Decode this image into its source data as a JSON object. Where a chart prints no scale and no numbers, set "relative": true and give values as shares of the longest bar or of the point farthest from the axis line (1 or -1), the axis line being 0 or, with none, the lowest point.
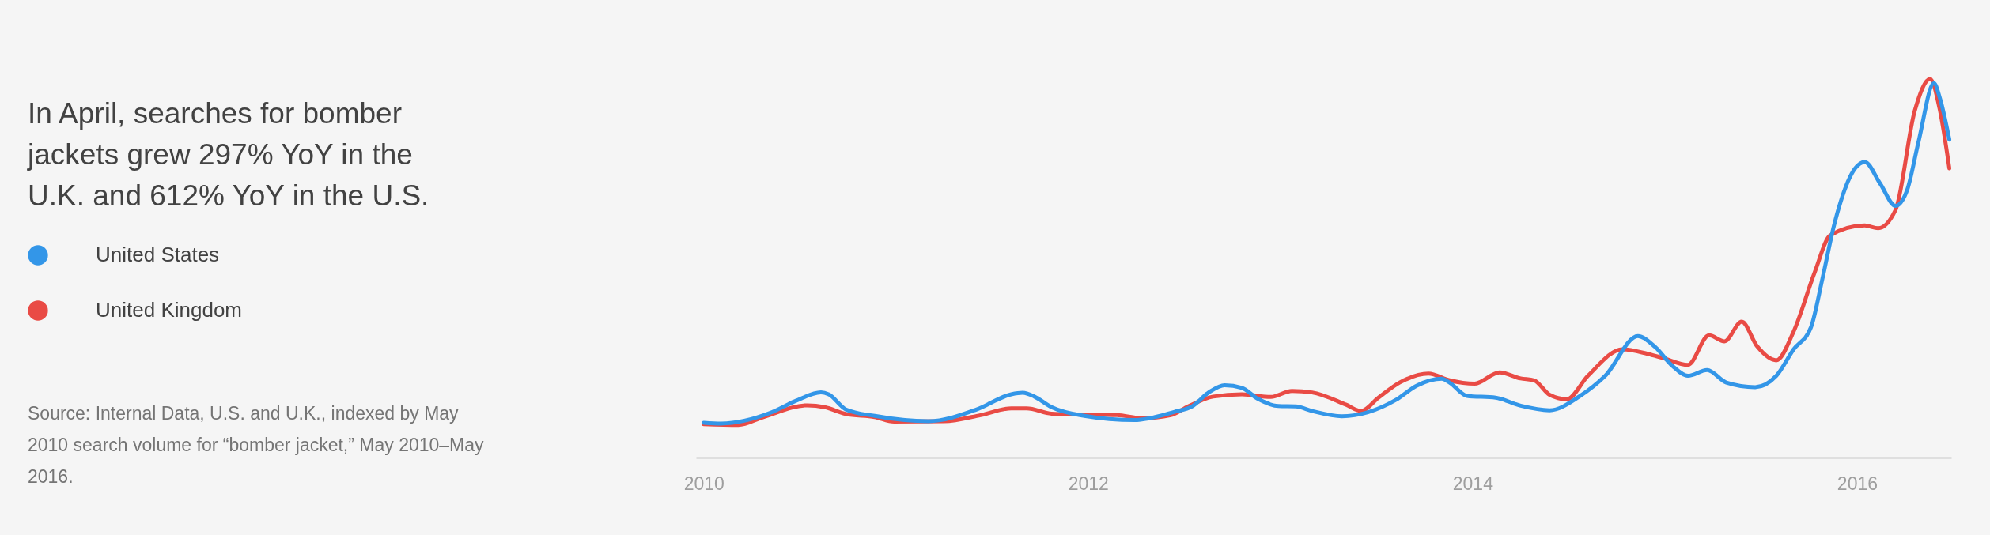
{
  "chart_data": {
    "type": "line",
    "title": "In April, searches for bomber jackets grew 297% YoY in the U.K. and 612% YoY in the U.S.",
    "annotations": [
      "Source: Internal Data, U.S. and U.K., indexed by May 2010 search volume for “bomber jacket,” May 2010–May 2016."
    ],
    "relative": true,
    "legend": "left",
    "xlim": [
      2009.96,
      2016.49
    ],
    "xticks": [
      2010,
      2012,
      2014,
      2016
    ],
    "grid": false,
    "series": [
      {
        "name": "United States",
        "color": "#3396e8",
        "x": [
          2010.0,
          2010.09,
          2010.35,
          2010.48,
          2010.61,
          2010.65,
          2010.74,
          2010.89,
          2011.17,
          2011.42,
          2011.6,
          2011.66,
          2011.72,
          2011.81,
          2011.98,
          2012.24,
          2012.45,
          2012.54,
          2012.63,
          2012.71,
          2012.8,
          2012.88,
          2012.99,
          2013.08,
          2013.165,
          2013.32,
          2013.6,
          2013.71,
          2013.84,
          2013.88,
          2013.97,
          2014.12,
          2014.25,
          2014.4,
          2014.56,
          2014.69,
          2014.86,
          2014.95,
          2015.04,
          2015.12,
          2015.22,
          2015.32,
          2015.47,
          2015.58,
          2015.67,
          2015.76,
          2015.82,
          2015.88,
          2015.99,
          2016.04,
          2016.12,
          2016.2,
          2016.26,
          2016.32,
          2016.4,
          2016.43,
          2016.48
        ],
        "values": [
          0.092,
          0.09,
          0.119,
          0.15,
          0.172,
          0.167,
          0.127,
          0.11,
          0.096,
          0.127,
          0.167,
          0.171,
          0.161,
          0.133,
          0.11,
          0.099,
          0.121,
          0.135,
          0.173,
          0.191,
          0.184,
          0.156,
          0.136,
          0.135,
          0.123,
          0.109,
          0.152,
          0.19,
          0.208,
          0.198,
          0.163,
          0.158,
          0.137,
          0.125,
          0.163,
          0.216,
          0.321,
          0.292,
          0.242,
          0.216,
          0.231,
          0.198,
          0.186,
          0.216,
          0.286,
          0.344,
          0.473,
          0.613,
          0.764,
          0.781,
          0.724,
          0.665,
          0.706,
          0.835,
          0.989,
          0.951,
          0.84
        ]
      },
      {
        "name": "United Kingdom",
        "color": "#e94b45",
        "x": [
          2010.0,
          2010.18,
          2010.31,
          2010.54,
          2010.63,
          2010.74,
          2010.89,
          2010.99,
          2011.25,
          2011.44,
          2011.6,
          2011.68,
          2011.81,
          2011.94,
          2012.15,
          2012.28,
          2012.43,
          2012.52,
          2012.65,
          2012.8,
          2012.95,
          2013.06,
          2013.165,
          2013.34,
          2013.42,
          2013.51,
          2013.62,
          2013.77,
          2013.88,
          2014.01,
          2014.14,
          2014.25,
          2014.32,
          2014.4,
          2014.49,
          2014.6,
          2014.78,
          2014.91,
          2014.99,
          2015.12,
          2015.23,
          2015.31,
          2015.4,
          2015.48,
          2015.58,
          2015.67,
          2015.78,
          2015.86,
          2016.04,
          2016.11,
          2016.2,
          2016.3,
          2016.38,
          2016.43,
          2016.48
        ],
        "values": [
          0.088,
          0.086,
          0.107,
          0.138,
          0.133,
          0.115,
          0.107,
          0.095,
          0.096,
          0.112,
          0.13,
          0.13,
          0.116,
          0.114,
          0.112,
          0.104,
          0.112,
          0.135,
          0.161,
          0.167,
          0.16,
          0.176,
          0.172,
          0.14,
          0.123,
          0.158,
          0.198,
          0.222,
          0.204,
          0.195,
          0.225,
          0.209,
          0.204,
          0.166,
          0.154,
          0.216,
          0.286,
          0.274,
          0.263,
          0.245,
          0.323,
          0.307,
          0.359,
          0.294,
          0.257,
          0.333,
          0.49,
          0.587,
          0.613,
          0.606,
          0.654,
          0.916,
          1.0,
          0.92,
          0.764
        ]
      }
    ]
  }
}
